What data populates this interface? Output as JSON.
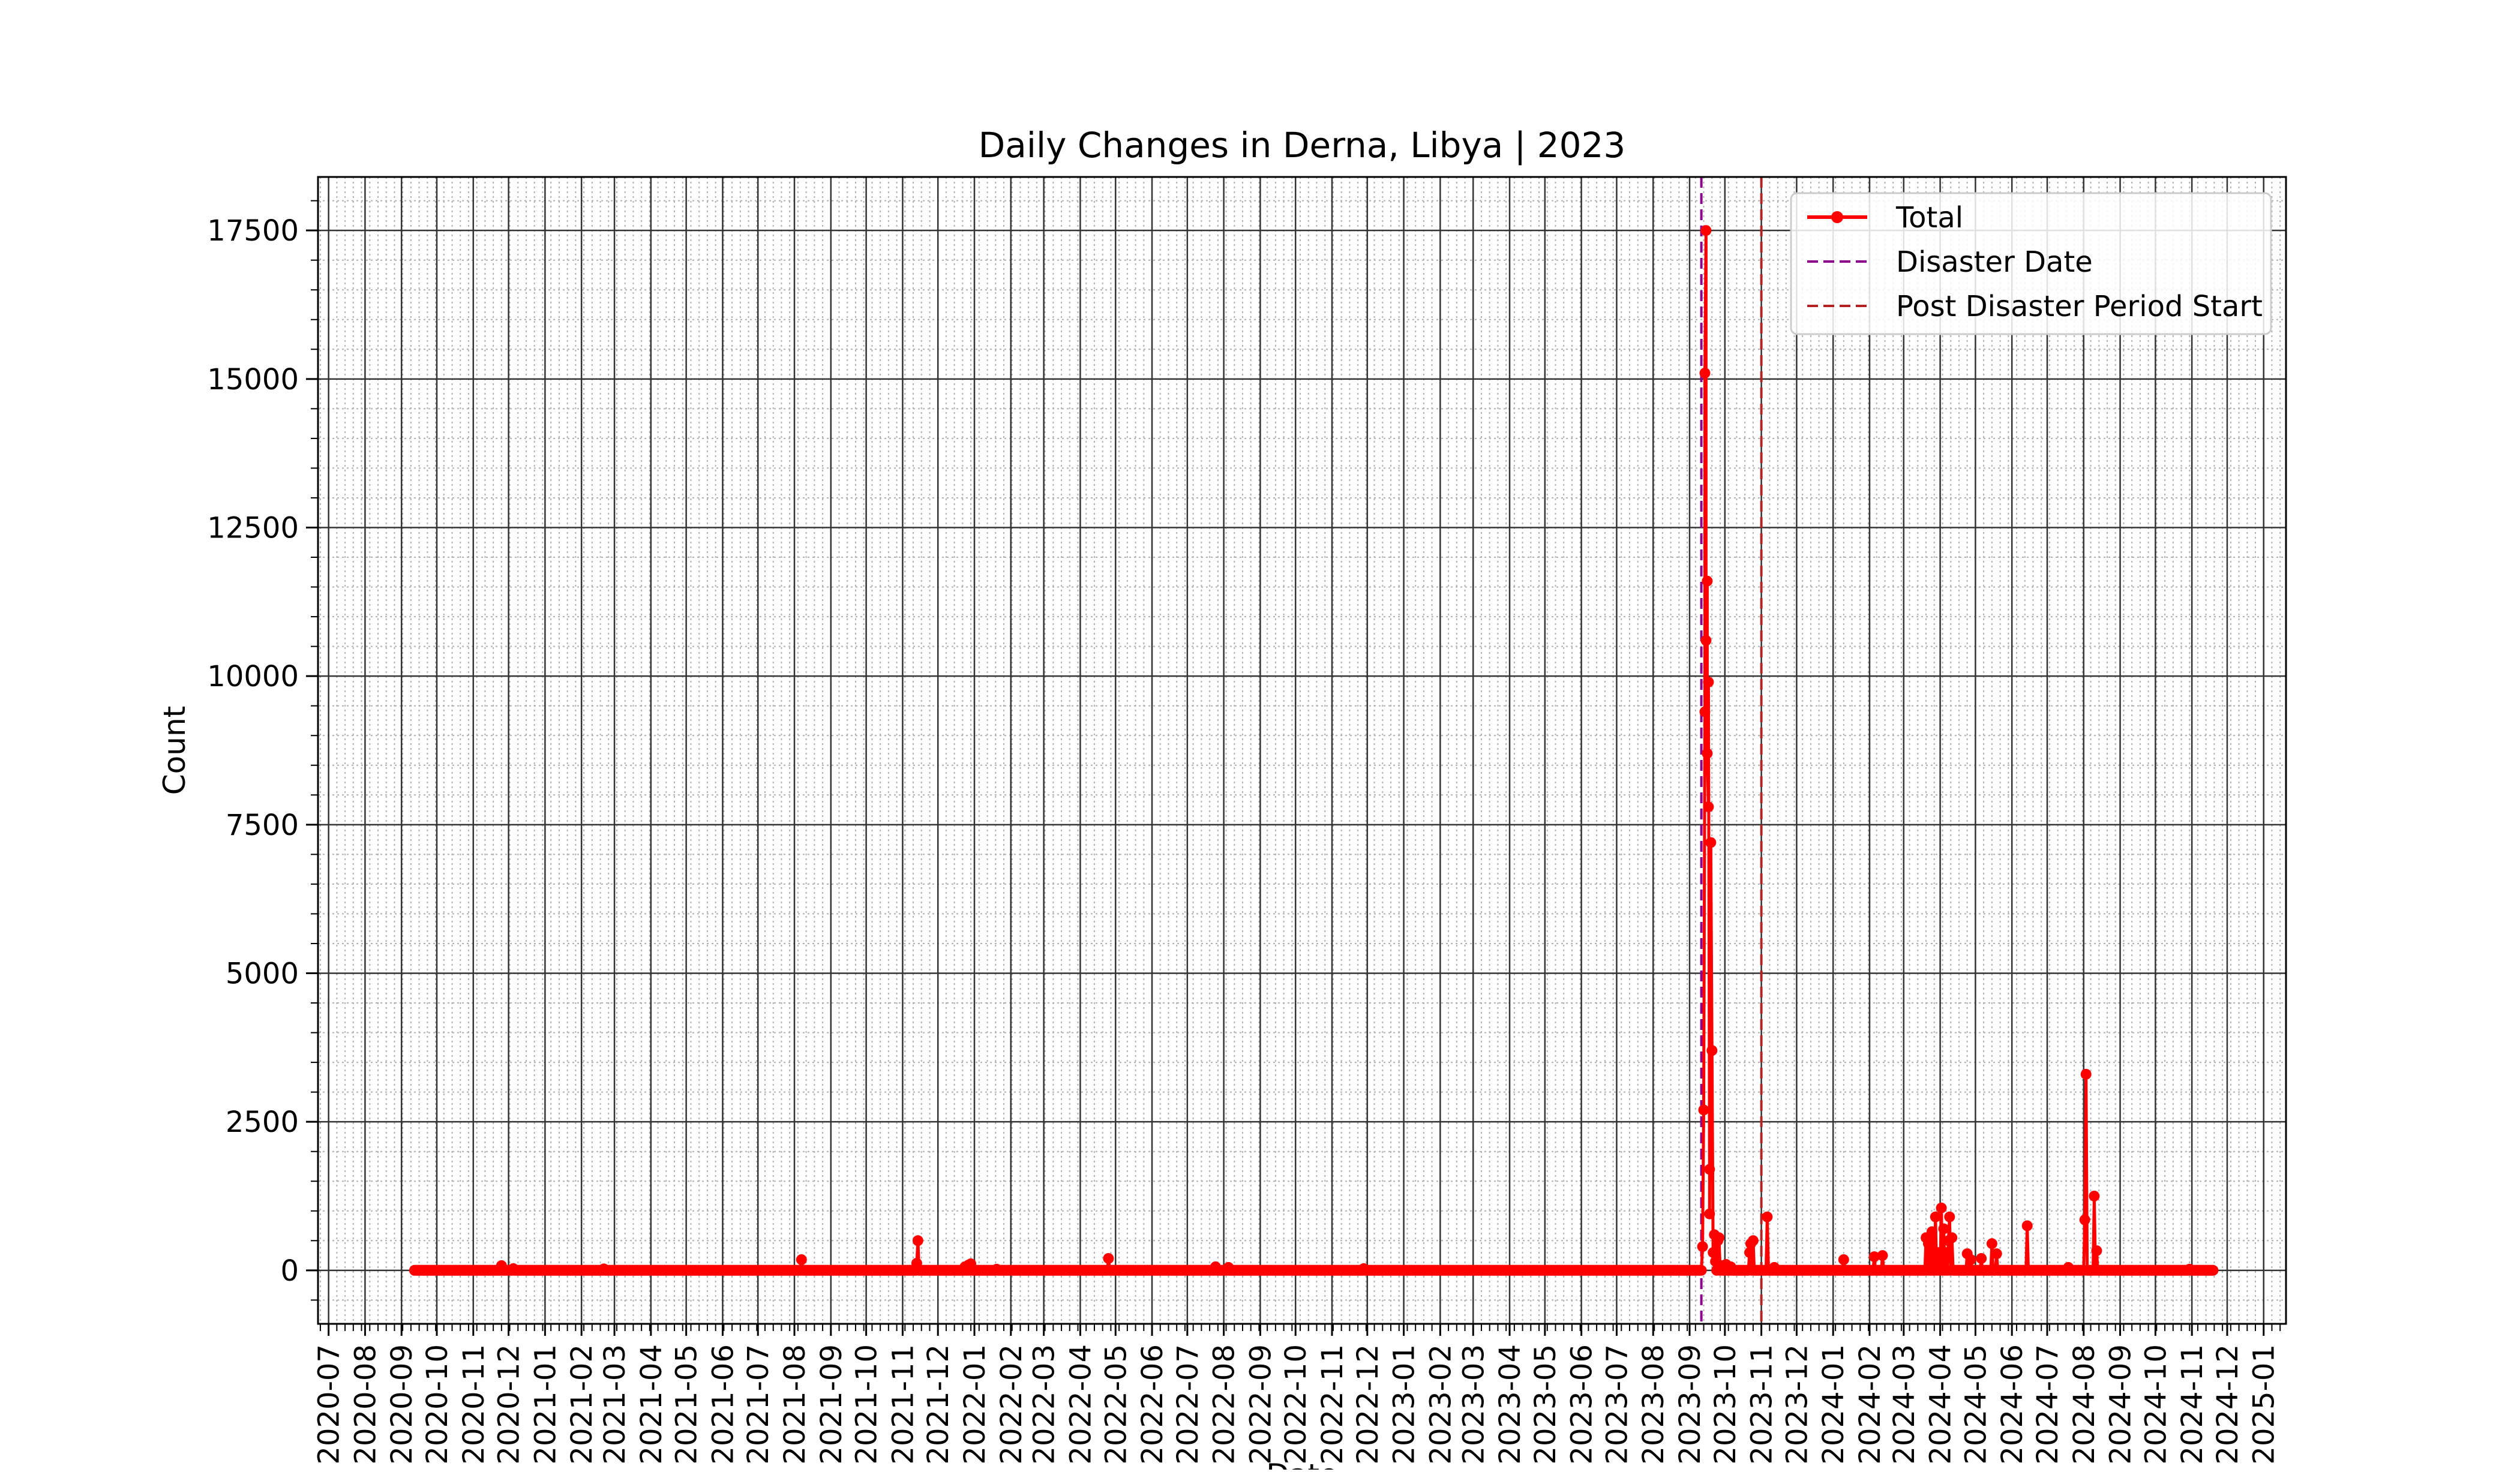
{
  "chart_data": {
    "type": "line",
    "title": "Daily Changes in Derna, Libya | 2023",
    "xlabel": "Date",
    "ylabel": "Count",
    "x_axis_type": "date",
    "xlim": [
      "2020-06-22",
      "2025-01-20"
    ],
    "ylim": [
      -900,
      18400
    ],
    "y_ticks": [
      0,
      2500,
      5000,
      7500,
      10000,
      12500,
      15000,
      17500
    ],
    "x_ticks": [
      "2020-07",
      "2020-08",
      "2020-09",
      "2020-10",
      "2020-11",
      "2020-12",
      "2021-01",
      "2021-02",
      "2021-03",
      "2021-04",
      "2021-05",
      "2021-06",
      "2021-07",
      "2021-08",
      "2021-09",
      "2021-10",
      "2021-11",
      "2021-12",
      "2022-01",
      "2022-02",
      "2022-03",
      "2022-04",
      "2022-05",
      "2022-06",
      "2022-07",
      "2022-08",
      "2022-09",
      "2022-10",
      "2022-11",
      "2022-12",
      "2023-01",
      "2023-02",
      "2023-03",
      "2023-04",
      "2023-05",
      "2023-06",
      "2023-07",
      "2023-08",
      "2023-09",
      "2023-10",
      "2023-11",
      "2023-12",
      "2024-01",
      "2024-02",
      "2024-03",
      "2024-04",
      "2024-05",
      "2024-06",
      "2024-07",
      "2024-08",
      "2024-09",
      "2024-10",
      "2024-11",
      "2024-12",
      "2025-01"
    ],
    "grid": true,
    "minor_grid": true,
    "legend_position": "top-right",
    "series": [
      {
        "name": "Total",
        "color": "#ff0000",
        "marker": "circle",
        "baseline": {
          "start": "2020-09-12",
          "end": "2024-11-19",
          "value": 0
        },
        "points": [
          [
            "2020-11-25",
            80
          ],
          [
            "2020-12-05",
            30
          ],
          [
            "2021-02-20",
            25
          ],
          [
            "2021-08-07",
            180
          ],
          [
            "2021-11-13",
            120
          ],
          [
            "2021-11-14",
            500
          ],
          [
            "2021-12-24",
            60
          ],
          [
            "2021-12-27",
            90
          ],
          [
            "2021-12-29",
            110
          ],
          [
            "2022-01-20",
            20
          ],
          [
            "2022-04-25",
            200
          ],
          [
            "2022-07-25",
            60
          ],
          [
            "2022-08-05",
            50
          ],
          [
            "2022-11-28",
            30
          ],
          [
            "2023-09-12",
            400
          ],
          [
            "2023-09-13",
            2700
          ],
          [
            "2023-09-14",
            9400
          ],
          [
            "2023-09-14",
            15100
          ],
          [
            "2023-09-15",
            17500
          ],
          [
            "2023-09-15",
            10600
          ],
          [
            "2023-09-16",
            11600
          ],
          [
            "2023-09-16",
            8700
          ],
          [
            "2023-09-17",
            7800
          ],
          [
            "2023-09-17",
            9900
          ],
          [
            "2023-09-18",
            1700
          ],
          [
            "2023-09-18",
            950
          ],
          [
            "2023-09-19",
            7200
          ],
          [
            "2023-09-20",
            3700
          ],
          [
            "2023-09-21",
            300
          ],
          [
            "2023-09-22",
            600
          ],
          [
            "2023-09-23",
            150
          ],
          [
            "2023-09-25",
            500
          ],
          [
            "2023-09-26",
            550
          ],
          [
            "2023-09-28",
            80
          ],
          [
            "2023-10-02",
            100
          ],
          [
            "2023-10-06",
            60
          ],
          [
            "2023-10-22",
            300
          ],
          [
            "2023-10-23",
            450
          ],
          [
            "2023-10-25",
            500
          ],
          [
            "2023-11-06",
            900
          ],
          [
            "2023-11-12",
            50
          ],
          [
            "2024-01-10",
            180
          ],
          [
            "2024-02-05",
            230
          ],
          [
            "2024-02-12",
            250
          ],
          [
            "2024-03-20",
            550
          ],
          [
            "2024-03-22",
            450
          ],
          [
            "2024-03-25",
            650
          ],
          [
            "2024-03-28",
            900
          ],
          [
            "2024-03-30",
            300
          ],
          [
            "2024-04-02",
            1050
          ],
          [
            "2024-04-04",
            700
          ],
          [
            "2024-04-06",
            300
          ],
          [
            "2024-04-08",
            500
          ],
          [
            "2024-04-09",
            900
          ],
          [
            "2024-04-11",
            550
          ],
          [
            "2024-04-24",
            280
          ],
          [
            "2024-04-27",
            180
          ],
          [
            "2024-05-06",
            200
          ],
          [
            "2024-05-15",
            450
          ],
          [
            "2024-05-19",
            280
          ],
          [
            "2024-06-14",
            750
          ],
          [
            "2024-07-19",
            50
          ],
          [
            "2024-08-02",
            850
          ],
          [
            "2024-08-03",
            3300
          ],
          [
            "2024-08-10",
            1250
          ],
          [
            "2024-08-12",
            330
          ],
          [
            "2024-10-30",
            20
          ]
        ]
      }
    ],
    "vlines": [
      {
        "name": "Disaster Date",
        "date": "2023-09-11",
        "color": "#8b008b",
        "style": "dashed"
      },
      {
        "name": "Post Disaster Period Start",
        "date": "2023-11-01",
        "color": "#b22222",
        "style": "dashed"
      }
    ]
  }
}
